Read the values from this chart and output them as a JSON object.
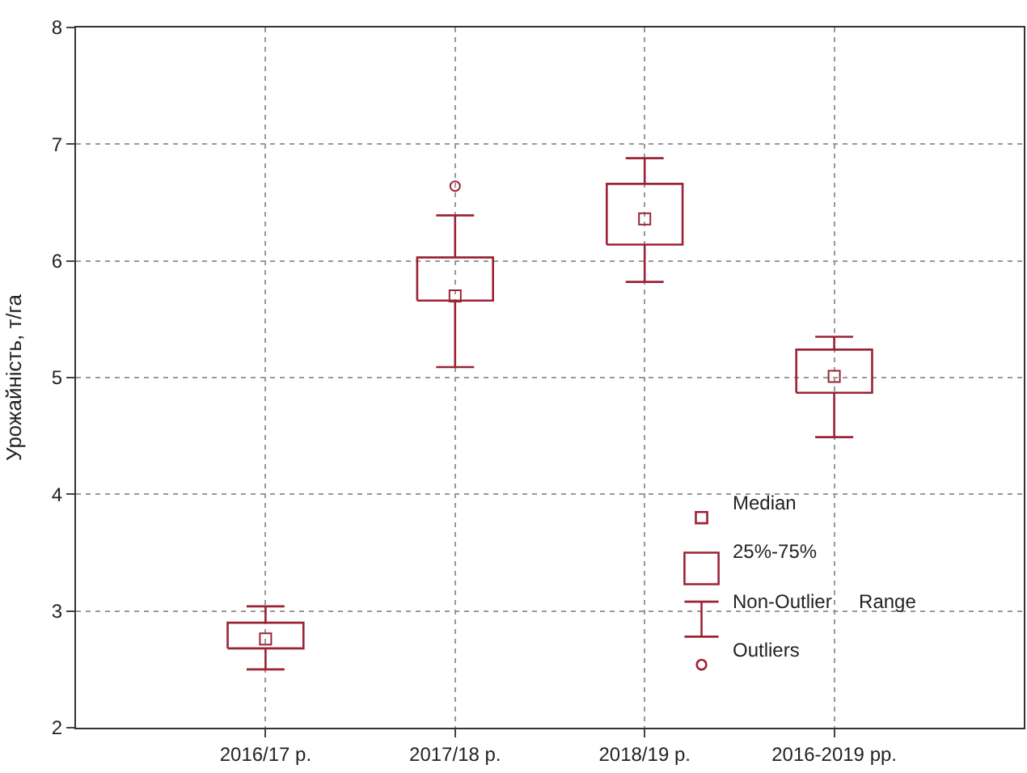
{
  "chart_data": {
    "type": "box",
    "ylabel": "Урожайність, т/га",
    "categories": [
      "2016/17 р.",
      "2017/18 р.",
      "2018/19 р.",
      "2016-2019 рр."
    ],
    "boxes": [
      {
        "low": 2.5,
        "q1": 2.68,
        "median": 2.76,
        "q3": 2.9,
        "high": 3.04
      },
      {
        "low": 5.09,
        "q1": 5.66,
        "median": 5.7,
        "q3": 6.03,
        "high": 6.39,
        "outliers": [
          6.64
        ]
      },
      {
        "low": 5.82,
        "q1": 6.14,
        "median": 6.36,
        "q3": 6.66,
        "high": 6.88
      },
      {
        "low": 4.49,
        "q1": 4.87,
        "median": 5.01,
        "q3": 5.24,
        "high": 5.35
      }
    ],
    "color": "#9b2335",
    "ylim": [
      2,
      8
    ],
    "yticks": [
      2,
      3,
      4,
      5,
      6,
      7,
      8
    ],
    "grid": true,
    "annotations": [
      "Median",
      "25%-75%",
      "Non-Outlier     Range",
      "Outliers"
    ]
  }
}
